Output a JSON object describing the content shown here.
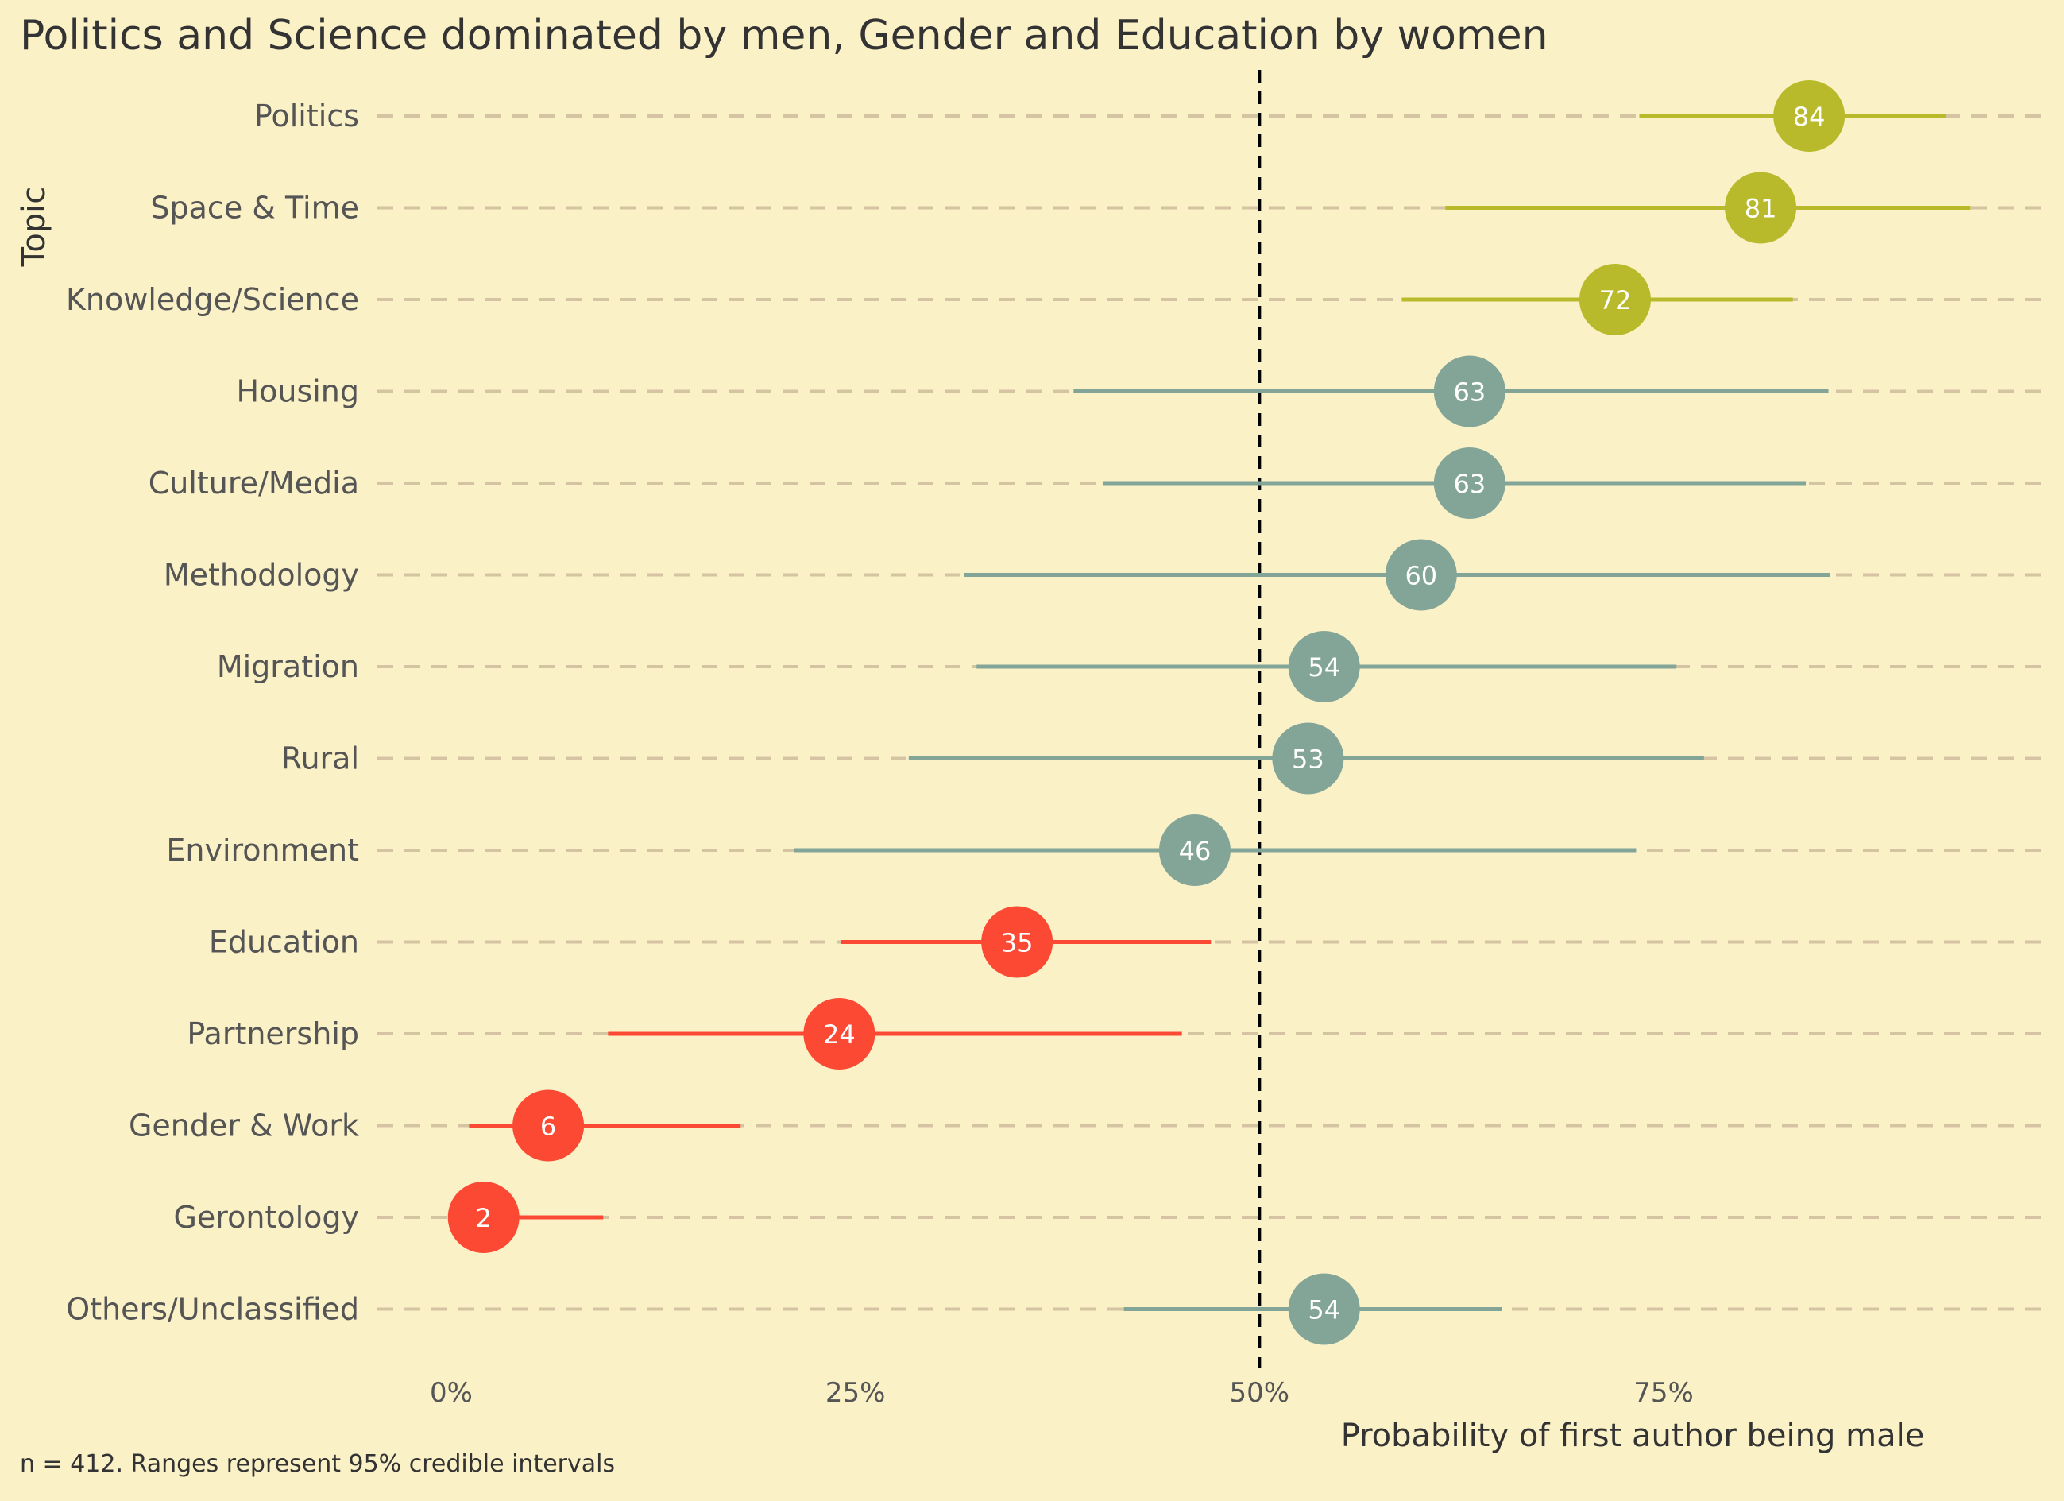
{
  "chart_data": {
    "type": "scatter",
    "title": "Politics and Science dominated by men, Gender and Education by women",
    "xlabel": "Probability of first author being male",
    "ylabel": "Topic",
    "caption": "n = 412. Ranges represent 95% credible intervals",
    "xlim": [
      -0.05,
      1.0
    ],
    "xticks": [
      {
        "value": 0.0,
        "label": "0%"
      },
      {
        "value": 0.25,
        "label": "25%"
      },
      {
        "value": 0.5,
        "label": "50%"
      },
      {
        "value": 0.75,
        "label": "75%"
      }
    ],
    "reference_line": 0.5,
    "grid": "horizontal dashed",
    "colors": {
      "men": "#B9BA2B",
      "neutral": "#83A598",
      "women": "#FB4934",
      "background": "#FBF1C7"
    },
    "points": [
      {
        "topic": "Politics",
        "estimate": 0.84,
        "lower": 0.735,
        "upper": 0.925,
        "label": "84",
        "group": "men"
      },
      {
        "topic": "Space & Time",
        "estimate": 0.81,
        "lower": 0.615,
        "upper": 0.94,
        "label": "81",
        "group": "men"
      },
      {
        "topic": "Knowledge/Science",
        "estimate": 0.72,
        "lower": 0.588,
        "upper": 0.83,
        "label": "72",
        "group": "men"
      },
      {
        "topic": "Housing",
        "estimate": 0.63,
        "lower": 0.385,
        "upper": 0.852,
        "label": "63",
        "group": "neutral"
      },
      {
        "topic": "Culture/Media",
        "estimate": 0.63,
        "lower": 0.403,
        "upper": 0.838,
        "label": "63",
        "group": "neutral"
      },
      {
        "topic": "Methodology",
        "estimate": 0.6,
        "lower": 0.317,
        "upper": 0.853,
        "label": "60",
        "group": "neutral"
      },
      {
        "topic": "Migration",
        "estimate": 0.54,
        "lower": 0.325,
        "upper": 0.758,
        "label": "54",
        "group": "neutral"
      },
      {
        "topic": "Rural",
        "estimate": 0.53,
        "lower": 0.283,
        "upper": 0.775,
        "label": "53",
        "group": "neutral"
      },
      {
        "topic": "Environment",
        "estimate": 0.46,
        "lower": 0.212,
        "upper": 0.733,
        "label": "46",
        "group": "neutral"
      },
      {
        "topic": "Education",
        "estimate": 0.35,
        "lower": 0.241,
        "upper": 0.47,
        "label": "35",
        "group": "women"
      },
      {
        "topic": "Partnership",
        "estimate": 0.24,
        "lower": 0.097,
        "upper": 0.452,
        "label": "24",
        "group": "women"
      },
      {
        "topic": "Gender & Work",
        "estimate": 0.06,
        "lower": 0.011,
        "upper": 0.179,
        "label": "6",
        "group": "women"
      },
      {
        "topic": "Gerontology",
        "estimate": 0.02,
        "lower": 0.0,
        "upper": 0.094,
        "label": "2",
        "group": "women"
      },
      {
        "topic": "Others/Unclassified",
        "estimate": 0.54,
        "lower": 0.416,
        "upper": 0.65,
        "label": "54",
        "group": "neutral"
      }
    ]
  }
}
